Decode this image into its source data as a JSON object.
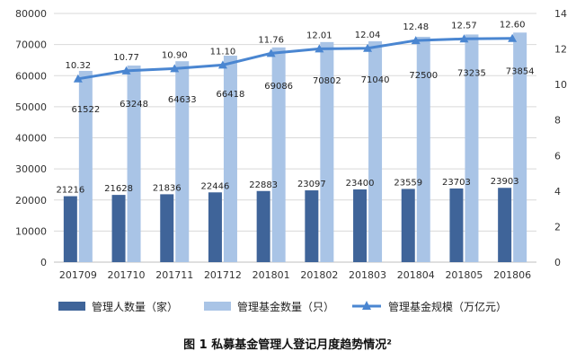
{
  "chart_data": {
    "type": "bar",
    "title": "图 1  私募基金管理人登记月度趋势情况²",
    "categories": [
      "201709",
      "201710",
      "201711",
      "201712",
      "201801",
      "201802",
      "201803",
      "201804",
      "201805",
      "201806"
    ],
    "series": [
      {
        "name": "管理人数量（家）",
        "type": "bar",
        "axis": "left",
        "color": "#3F6499",
        "values": [
          21216,
          21628,
          21836,
          22446,
          22883,
          23097,
          23400,
          23559,
          23703,
          23903
        ]
      },
      {
        "name": "管理基金数量（只）",
        "type": "bar",
        "axis": "left",
        "color": "#A9C4E6",
        "values": [
          61522,
          63248,
          64633,
          66418,
          69086,
          70802,
          71040,
          72500,
          73235,
          73854
        ]
      },
      {
        "name": "管理基金规模（万亿元）",
        "type": "line",
        "axis": "right",
        "color": "#4A86D1",
        "values": [
          10.32,
          10.77,
          10.9,
          11.1,
          11.76,
          12.01,
          12.04,
          12.48,
          12.57,
          12.6
        ]
      }
    ],
    "ylim_left": [
      0,
      80000
    ],
    "yticks_left": [
      0,
      10000,
      20000,
      30000,
      40000,
      50000,
      60000,
      70000,
      80000
    ],
    "ylim_right": [
      0,
      14
    ],
    "yticks_right": [
      0,
      2,
      4,
      6,
      8,
      10,
      12,
      14
    ],
    "grid": true,
    "legend_position": "bottom"
  }
}
